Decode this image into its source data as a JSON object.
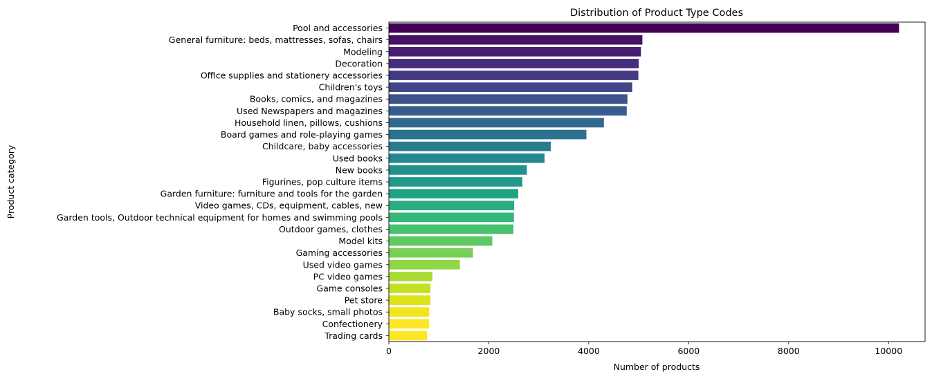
{
  "chart_data": {
    "type": "bar",
    "orientation": "horizontal",
    "title": "Distribution of Product Type Codes",
    "xlabel": "Number of products",
    "ylabel": "Product category",
    "xlim": [
      0,
      10730
    ],
    "xticks": [
      0,
      2000,
      4000,
      6000,
      8000,
      10000
    ],
    "grid": false,
    "legend": "none",
    "colormap": "viridis",
    "categories": [
      "Pool and accessories",
      "General furniture: beds, mattresses, sofas, chairs",
      "Modeling",
      "Decoration",
      "Office supplies and stationery accessories",
      "Children's toys",
      "Books, comics, and magazines",
      "Used Newspapers and magazines",
      "Household linen, pillows, cushions",
      "Board games and role-playing games",
      "Childcare, baby accessories",
      "Used books",
      "New books",
      "Figurines, pop culture items",
      "Garden furniture: furniture and tools for the garden",
      "Video games, CDs, equipment, cables, new",
      "Garden tools, Outdoor technical equipment for homes and swimming pools",
      "Outdoor games, clothes",
      "Model kits",
      "Gaming accessories",
      "Used video games",
      "PC video games",
      "Game consoles",
      "Pet store",
      "Baby socks, small photos",
      "Confectionery",
      "Trading cards"
    ],
    "values": [
      10209,
      5073,
      5045,
      5000,
      4993,
      4870,
      4774,
      4760,
      4303,
      3953,
      3241,
      3116,
      2761,
      2671,
      2589,
      2508,
      2503,
      2493,
      2070,
      1681,
      1421,
      872,
      832,
      832,
      807,
      803,
      764
    ],
    "colors": [
      "#440154",
      "#471164",
      "#481f70",
      "#472d7b",
      "#443a83",
      "#404688",
      "#3b528b",
      "#365d8d",
      "#31688e",
      "#2c728e",
      "#287c8e",
      "#24868e",
      "#21918c",
      "#1f9a8a",
      "#20a486",
      "#27ad81",
      "#35b779",
      "#47c16e",
      "#5ec962",
      "#75d054",
      "#8fd744",
      "#a8db34",
      "#c2df23",
      "#dde318",
      "#f0e51c",
      "#fde725",
      "#fde725"
    ]
  }
}
